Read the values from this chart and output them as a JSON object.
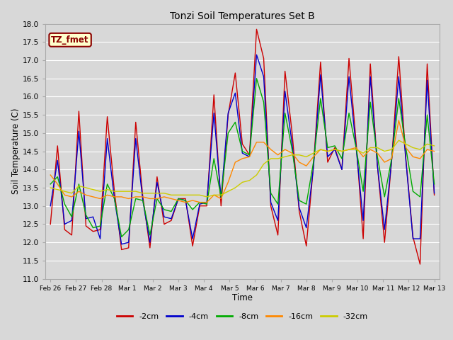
{
  "title": "Tonzi Soil Temperatures Set B",
  "xlabel": "Time",
  "ylabel": "Soil Temperature (C)",
  "ylim": [
    11.0,
    18.0
  ],
  "yticks": [
    11.0,
    11.5,
    12.0,
    12.5,
    13.0,
    13.5,
    14.0,
    14.5,
    15.0,
    15.5,
    16.0,
    16.5,
    17.0,
    17.5,
    18.0
  ],
  "xtick_labels": [
    "Feb 26",
    "Feb 27",
    "Feb 28",
    "Mar 1",
    "Mar 2",
    "Mar 3",
    "Mar 4",
    "Mar 5",
    "Mar 6",
    "Mar 7",
    "Mar 8",
    "Mar 9",
    "Mar 10",
    "Mar 11",
    "Mar 12",
    "Mar 13"
  ],
  "background_color": "#d8d8d8",
  "plot_bg_color": "#d8d8d8",
  "grid_color": "#ffffff",
  "label_box_color": "#ffffcc",
  "label_box_edge": "#8B0000",
  "label_text_color": "#8B0000",
  "label_text": "TZ_fmet",
  "series": {
    "neg2cm": {
      "color": "#cc0000",
      "label": "-2cm",
      "values": [
        12.5,
        14.65,
        12.35,
        12.2,
        15.6,
        12.45,
        12.3,
        12.35,
        15.45,
        13.4,
        11.8,
        11.85,
        15.3,
        13.25,
        11.85,
        13.8,
        12.5,
        12.6,
        13.2,
        13.2,
        11.9,
        13.0,
        13.0,
        16.05,
        13.0,
        15.5,
        16.65,
        14.7,
        14.4,
        17.85,
        17.05,
        13.0,
        12.2,
        16.7,
        15.0,
        12.85,
        11.9,
        14.1,
        16.95,
        14.2,
        14.6,
        14.0,
        17.05,
        14.75,
        12.1,
        16.9,
        14.1,
        12.0,
        14.25,
        17.1,
        14.3,
        12.15,
        11.4,
        16.9,
        13.3
      ]
    },
    "neg4cm": {
      "color": "#0000cc",
      "label": "-4cm",
      "values": [
        13.0,
        14.25,
        12.5,
        12.6,
        15.05,
        12.65,
        12.7,
        12.1,
        14.85,
        13.2,
        11.95,
        12.0,
        14.85,
        13.15,
        12.0,
        13.65,
        12.7,
        12.65,
        13.2,
        13.15,
        12.1,
        13.05,
        13.1,
        15.55,
        13.2,
        15.55,
        16.1,
        14.45,
        14.35,
        17.15,
        16.55,
        13.1,
        12.6,
        16.15,
        14.7,
        12.95,
        12.4,
        14.05,
        16.6,
        14.35,
        14.55,
        14.0,
        16.55,
        14.6,
        12.6,
        16.55,
        14.1,
        12.35,
        14.25,
        16.55,
        14.25,
        12.1,
        12.1,
        16.45,
        13.35
      ]
    },
    "neg8cm": {
      "color": "#00aa00",
      "label": "-8cm",
      "values": [
        13.6,
        13.8,
        13.05,
        12.7,
        13.6,
        12.75,
        12.4,
        12.45,
        13.6,
        13.2,
        12.15,
        12.35,
        13.2,
        13.15,
        12.2,
        13.2,
        12.9,
        12.85,
        13.2,
        13.15,
        12.9,
        13.1,
        13.05,
        14.3,
        13.25,
        15.0,
        15.3,
        14.5,
        14.4,
        16.5,
        15.85,
        13.35,
        13.05,
        15.55,
        14.55,
        13.15,
        13.05,
        14.2,
        15.95,
        14.6,
        14.65,
        14.3,
        15.55,
        14.6,
        13.4,
        15.85,
        14.35,
        13.25,
        14.3,
        15.95,
        14.6,
        13.4,
        13.25,
        15.5,
        13.6
      ]
    },
    "neg16cm": {
      "color": "#ff8800",
      "label": "-16cm",
      "values": [
        13.85,
        13.6,
        13.3,
        13.25,
        13.4,
        13.3,
        13.25,
        13.2,
        13.3,
        13.25,
        13.25,
        13.2,
        13.25,
        13.25,
        13.2,
        13.2,
        13.25,
        13.2,
        13.15,
        13.1,
        13.15,
        13.1,
        13.1,
        13.3,
        13.2,
        13.65,
        14.2,
        14.3,
        14.35,
        14.75,
        14.75,
        14.55,
        14.4,
        14.55,
        14.45,
        14.2,
        14.1,
        14.35,
        14.55,
        14.5,
        14.55,
        14.5,
        14.55,
        14.6,
        14.35,
        14.55,
        14.45,
        14.2,
        14.3,
        15.35,
        14.6,
        14.35,
        14.3,
        14.55,
        14.5
      ]
    },
    "neg32cm": {
      "color": "#cccc00",
      "label": "-32cm",
      "values": [
        13.5,
        13.45,
        13.4,
        13.35,
        13.55,
        13.5,
        13.45,
        13.4,
        13.45,
        13.4,
        13.4,
        13.4,
        13.4,
        13.35,
        13.35,
        13.35,
        13.35,
        13.3,
        13.3,
        13.3,
        13.3,
        13.3,
        13.25,
        13.3,
        13.3,
        13.4,
        13.5,
        13.65,
        13.7,
        13.85,
        14.15,
        14.3,
        14.3,
        14.35,
        14.4,
        14.4,
        14.35,
        14.45,
        14.55,
        14.5,
        14.55,
        14.5,
        14.55,
        14.55,
        14.45,
        14.6,
        14.6,
        14.5,
        14.55,
        14.8,
        14.7,
        14.6,
        14.55,
        14.7,
        14.65
      ]
    }
  }
}
